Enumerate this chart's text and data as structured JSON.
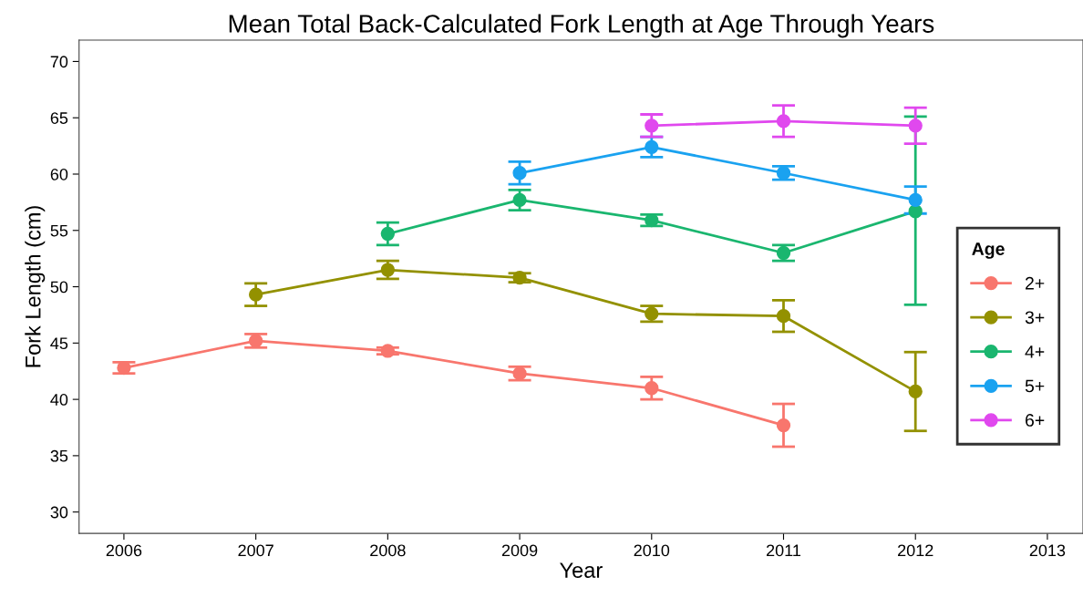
{
  "chart_data": {
    "type": "line",
    "title": "Mean Total Back-Calculated Fork Length at Age Through Years",
    "xlabel": "Year",
    "ylabel": "Fork Length (cm)",
    "legend_title": "Age",
    "legend": "right",
    "marker": "circle",
    "line_style": "solid",
    "grid": false,
    "xlim": [
      2005.66,
      2013.27
    ],
    "xticks": [
      2006,
      2007,
      2008,
      2009,
      2010,
      2011,
      2012,
      2013
    ],
    "ylim": [
      28.1,
      71.9
    ],
    "yticks": [
      30,
      35,
      40,
      45,
      50,
      55,
      60,
      65,
      70
    ],
    "series": [
      {
        "name": "2+",
        "color": "#f8766d",
        "x": [
          2006,
          2007,
          2008,
          2009,
          2010,
          2011
        ],
        "values": [
          42.8,
          45.2,
          44.3,
          42.3,
          41.0,
          37.7
        ],
        "errors": [
          0.5,
          0.6,
          0.3,
          0.6,
          1.0,
          1.9
        ]
      },
      {
        "name": "3+",
        "color": "#939100",
        "x": [
          2007,
          2008,
          2009,
          2010,
          2011,
          2012
        ],
        "values": [
          49.3,
          51.5,
          50.8,
          47.6,
          47.4,
          40.7
        ],
        "errors": [
          1.0,
          0.8,
          0.4,
          0.7,
          1.4,
          3.5
        ]
      },
      {
        "name": "4+",
        "color": "#1ab66f",
        "x": [
          2008,
          2009,
          2010,
          2011,
          2012
        ],
        "values": [
          54.7,
          57.7,
          55.9,
          53.0,
          56.7
        ],
        "errors": [
          1.0,
          0.9,
          0.5,
          0.7,
          [
            48.4,
            65.1
          ]
        ]
      },
      {
        "name": "5+",
        "color": "#1aa2f0",
        "x": [
          2009,
          2010,
          2011,
          2012
        ],
        "values": [
          60.1,
          62.4,
          60.1,
          57.7
        ],
        "errors": [
          1.0,
          0.9,
          0.6,
          1.2
        ]
      },
      {
        "name": "6+",
        "color": "#e048ee",
        "x": [
          2010,
          2011,
          2012
        ],
        "values": [
          64.3,
          64.7,
          64.3
        ],
        "errors": [
          1.0,
          1.4,
          1.6
        ]
      }
    ]
  }
}
